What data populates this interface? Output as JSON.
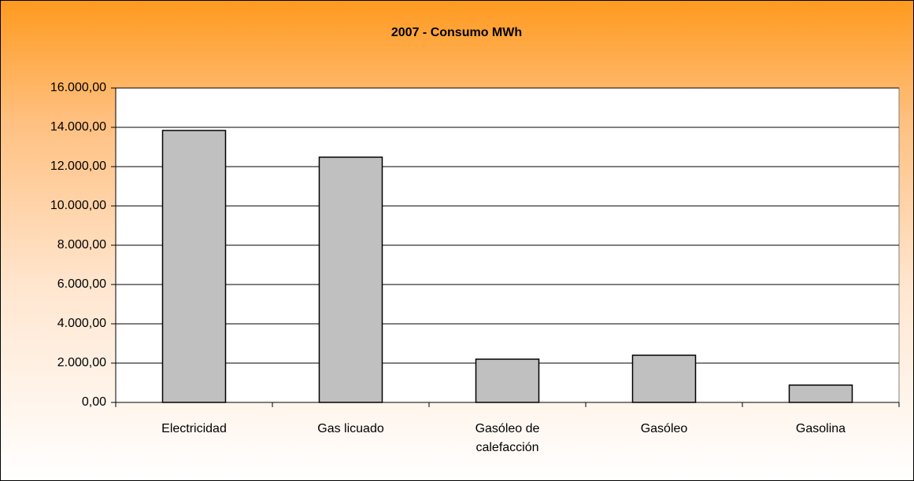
{
  "chart_data": {
    "type": "bar",
    "title": "2007 - Consumo MWh",
    "categories": [
      "Electricidad",
      "Gas licuado",
      "Gasóleo de calefacción",
      "Gasóleo",
      "Gasolina"
    ],
    "values": [
      13840,
      12480,
      2200,
      2400,
      880
    ],
    "color": "#c0c0c0",
    "ylim": [
      0,
      16000
    ],
    "yticks": [
      {
        "value": 0,
        "label": "0,00"
      },
      {
        "value": 2000,
        "label": "2.000,00"
      },
      {
        "value": 4000,
        "label": "4.000,00"
      },
      {
        "value": 6000,
        "label": "6.000,00"
      },
      {
        "value": 8000,
        "label": "8.000,00"
      },
      {
        "value": 10000,
        "label": "10.000,00"
      },
      {
        "value": 12000,
        "label": "12.000,00"
      },
      {
        "value": 14000,
        "label": "14.000,00"
      },
      {
        "value": 16000,
        "label": "16.000,00"
      }
    ],
    "grid": true
  }
}
